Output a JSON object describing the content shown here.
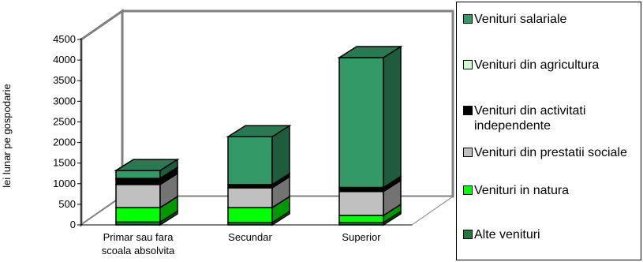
{
  "chart_data": {
    "type": "bar",
    "stacked": true,
    "three_d": true,
    "categories": [
      "Primar sau fara scoala absolvita",
      "Secundar",
      "Superior"
    ],
    "ylabel": "lei lunar pe gospodarie",
    "ylim": [
      0,
      4500
    ],
    "yticks": [
      0,
      500,
      1000,
      1500,
      2000,
      2500,
      3000,
      3500,
      4000,
      4500
    ],
    "legend_position": "right",
    "series": [
      {
        "name": "Alte venituri",
        "color": "#1e7b3c",
        "values": [
          70,
          60,
          60
        ]
      },
      {
        "name": "Venituri in natura",
        "color": "#00ff00",
        "values": [
          350,
          360,
          170
        ]
      },
      {
        "name": "Venituri din prestatii sociale",
        "color": "#c0c0c0",
        "values": [
          560,
          480,
          580
        ]
      },
      {
        "name": "Venituri din activitati independente",
        "color": "#000000",
        "values": [
          130,
          60,
          80
        ]
      },
      {
        "name": "Venituri din agricultura",
        "color": "#ccffcc",
        "values": [
          20,
          20,
          20
        ]
      },
      {
        "name": "Venituri salariale",
        "color": "#339966",
        "values": [
          190,
          1160,
          3150
        ]
      }
    ],
    "legend_order": [
      5,
      4,
      3,
      2,
      1,
      0
    ]
  }
}
